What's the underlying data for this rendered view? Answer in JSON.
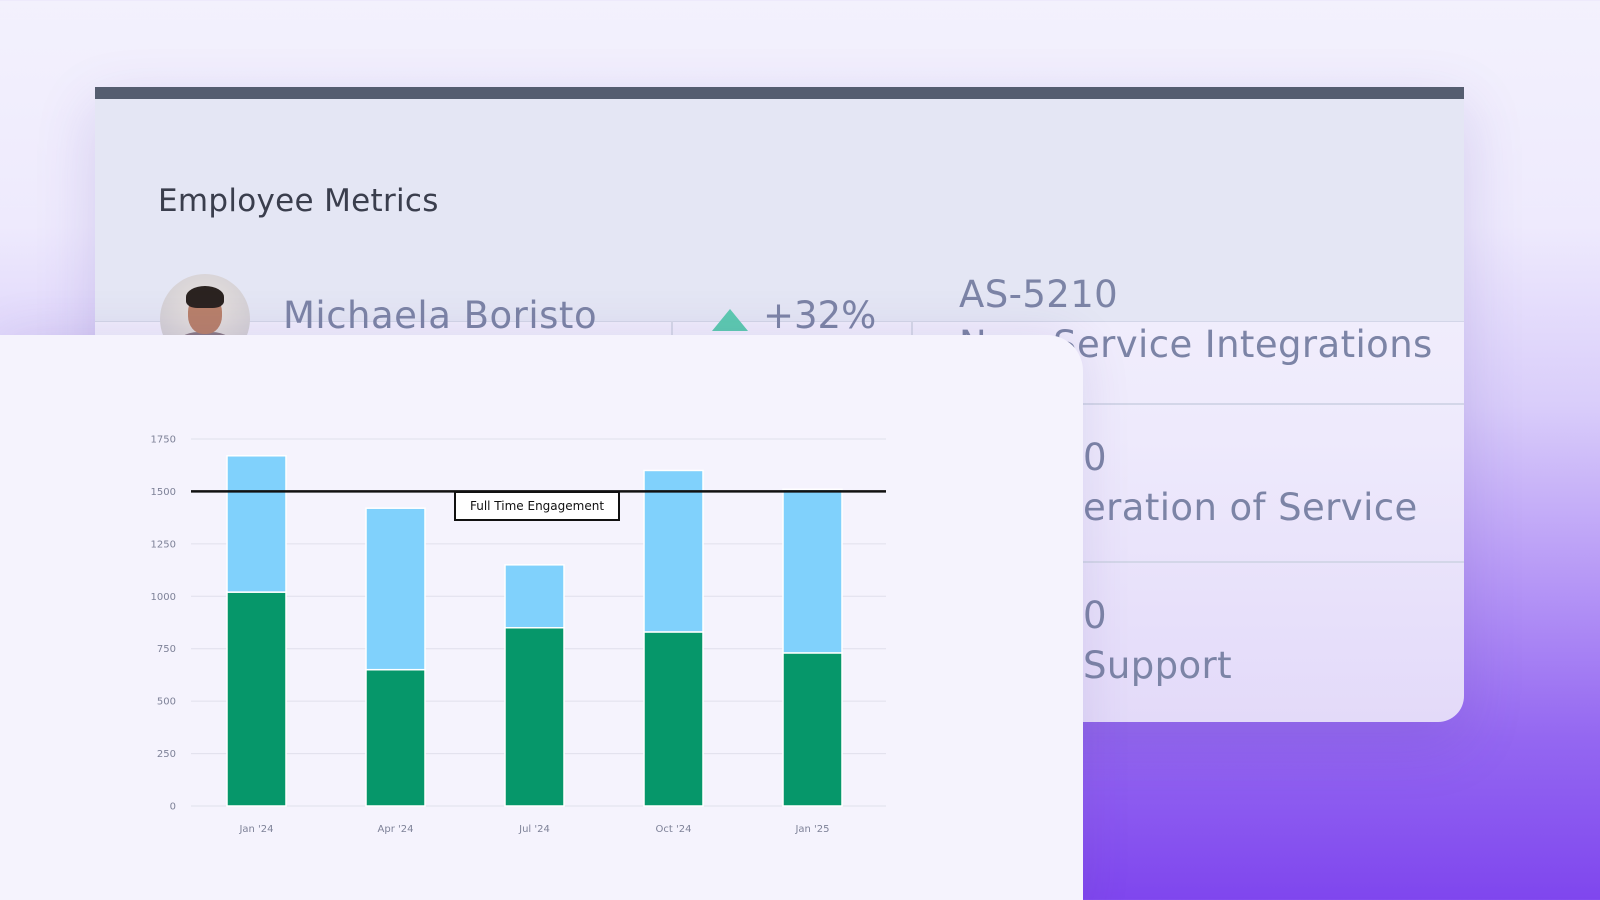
{
  "header": {
    "title": "Employee Metrics"
  },
  "employee": {
    "name": "Michaela Boristo",
    "avatar_icon": "person-avatar",
    "trend_icon": "triangle-up-icon",
    "trend_value": "+32%",
    "trend_color": "#5ccab0"
  },
  "metrics": [
    {
      "code": "AS-5210",
      "label": "New Service Integrations"
    },
    {
      "code": "0",
      "label": "eration of Service"
    },
    {
      "code": "0",
      "label": "Support"
    }
  ],
  "chart_data": {
    "type": "bar",
    "stacked": true,
    "categories": [
      "Jan '24",
      "Apr '24",
      "Jul '24",
      "Oct '24",
      "Jan '25"
    ],
    "series": [
      {
        "values": [
          1020,
          650,
          850,
          830,
          730
        ],
        "color": "#06976a"
      },
      {
        "values": [
          650,
          770,
          300,
          770,
          780
        ],
        "color": "#80d1fc"
      }
    ],
    "y_ticks": [
      0,
      250,
      500,
      750,
      1000,
      1250,
      1500,
      1750
    ],
    "ylim": [
      0,
      1750
    ],
    "grid": true,
    "reference_line": {
      "value": 1500,
      "label": "Full Time Engagement",
      "color": "#111111"
    },
    "title": "",
    "xlabel": "",
    "ylabel": ""
  }
}
